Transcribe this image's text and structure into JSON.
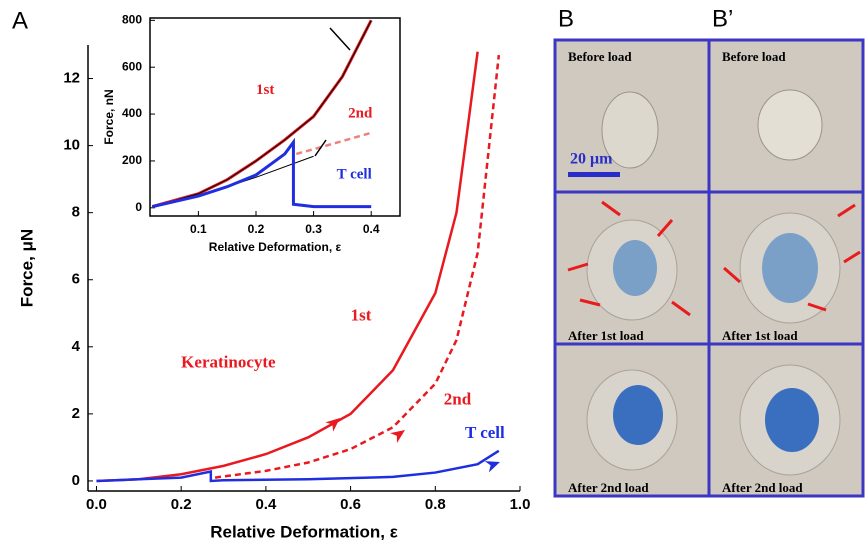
{
  "chart_data": [
    {
      "type": "line",
      "panel_label": "A",
      "xlabel": "Relative Deformation, ε",
      "ylabel": "Force, μN",
      "xlim": [
        -0.02,
        1.0
      ],
      "ylim": [
        -0.3,
        13
      ],
      "xticks": [
        {
          "value": 0,
          "label": "0.0"
        },
        0.2,
        0.4,
        0.6,
        0.8,
        {
          "value": 1,
          "label": "1.0"
        }
      ],
      "yticks": [
        0,
        2,
        4,
        6,
        8,
        10,
        12
      ],
      "series": [
        {
          "color": "#e8191f",
          "style": "solid",
          "x": [
            0,
            0.1,
            0.2,
            0.3,
            0.4,
            0.5,
            0.6,
            0.7,
            0.8,
            0.85,
            0.9
          ],
          "values": [
            0,
            0.05,
            0.2,
            0.45,
            0.8,
            1.3,
            2.0,
            3.3,
            5.6,
            8.0,
            12.8
          ]
        },
        {
          "color": "#e8191f",
          "style": "dashed",
          "x": [
            0.28,
            0.4,
            0.5,
            0.6,
            0.7,
            0.8,
            0.85,
            0.9,
            0.95
          ],
          "values": [
            0.1,
            0.3,
            0.55,
            0.95,
            1.6,
            2.9,
            4.2,
            6.8,
            12.7
          ]
        },
        {
          "color": "#1f2fe0",
          "style": "solid",
          "x": [
            0,
            0.1,
            0.2,
            0.27,
            0.27,
            0.3,
            0.5,
            0.7,
            0.8,
            0.9,
            0.95
          ],
          "values": [
            0,
            0.05,
            0.1,
            0.28,
            0,
            0.02,
            0.05,
            0.12,
            0.25,
            0.5,
            0.9
          ]
        }
      ],
      "annotations": [
        {
          "text": "Keratinocyte",
          "color": "#e8191f",
          "x": 0.2,
          "y": 3.5
        },
        {
          "text": "1st",
          "color": "#e8191f",
          "x": 0.6,
          "y": 4.9
        },
        {
          "text": "2nd",
          "color": "#e8191f",
          "x": 0.82,
          "y": 2.4
        },
        {
          "text": "T cell",
          "color": "#1f2fe0",
          "x": 0.87,
          "y": 1.4
        }
      ]
    },
    {
      "type": "line",
      "xlabel": "Relative Deformation, ε",
      "ylabel": "Force, nN",
      "xlim": [
        0.016,
        0.45
      ],
      "ylim": [
        -35,
        810
      ],
      "xticks": [
        0.1,
        0.2,
        0.3,
        0.4
      ],
      "yticks": [
        0,
        200,
        400,
        600,
        800
      ],
      "series": [
        {
          "color": "#e8191f",
          "style": "thick",
          "x": [
            0.02,
            0.1,
            0.15,
            0.2,
            0.25,
            0.3,
            0.35,
            0.4
          ],
          "values": [
            5,
            60,
            120,
            200,
            290,
            390,
            560,
            800
          ]
        },
        {
          "color": "#000000",
          "style": "thin",
          "x": [
            0.02,
            0.1,
            0.15,
            0.2,
            0.25,
            0.3,
            0.35,
            0.4
          ],
          "values": [
            5,
            60,
            120,
            200,
            290,
            390,
            560,
            800
          ]
        },
        {
          "color": "#f08080",
          "style": "dashed",
          "x": [
            0.27,
            0.3,
            0.35,
            0.4
          ],
          "values": [
            230,
            250,
            285,
            320
          ]
        },
        {
          "color": "#000000",
          "style": "thin",
          "x": [
            0.02,
            0.1,
            0.2,
            0.3
          ],
          "values": [
            5,
            50,
            130,
            220
          ]
        },
        {
          "color": "#1f2fe0",
          "style": "thick",
          "x": [
            0.02,
            0.1,
            0.15,
            0.2,
            0.25,
            0.265,
            0.265,
            0.3,
            0.4
          ],
          "values": [
            5,
            50,
            90,
            140,
            230,
            280,
            15,
            5,
            5
          ]
        }
      ],
      "annotations": [
        {
          "text": "1st",
          "color": "#e8191f",
          "x": 0.2,
          "y": 500
        },
        {
          "text": "2nd",
          "color": "#e8191f",
          "x": 0.36,
          "y": 400
        },
        {
          "text": "T cell",
          "color": "#1f2fe0",
          "x": 0.34,
          "y": 140
        }
      ]
    }
  ],
  "micrographs": {
    "labels": [
      "B",
      "B’"
    ],
    "rows": [
      "Before load",
      "After 1st load",
      "After 2nd load"
    ],
    "scale_bar": "20 μm"
  }
}
